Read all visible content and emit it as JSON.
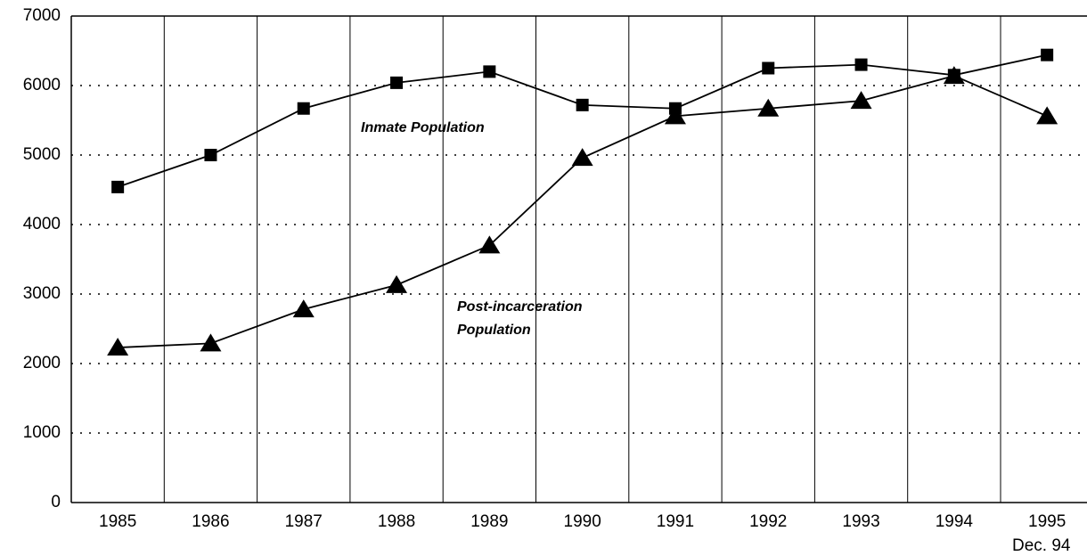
{
  "chart_data": {
    "type": "line",
    "categories": [
      "1985",
      "1986",
      "1987",
      "1988",
      "1989",
      "1990",
      "1991",
      "1992",
      "1993",
      "1994",
      "1995"
    ],
    "series": [
      {
        "name": "Inmate Population",
        "color": "#000000",
        "marker": "square",
        "values": [
          4540,
          5000,
          5670,
          6040,
          6200,
          5720,
          5670,
          6250,
          6300,
          6150,
          6440
        ]
      },
      {
        "name": "Post-incarceration Population",
        "color": "#000000",
        "marker": "triangle",
        "values": [
          2230,
          2290,
          2780,
          3130,
          3700,
          4960,
          5560,
          5670,
          5780,
          6140,
          5560
        ]
      }
    ],
    "annotations": [
      "Inmate Population",
      "Post-incarceration",
      "Population",
      "Dec. 94"
    ],
    "ylim": [
      0,
      7000
    ],
    "yticks": [
      0,
      1000,
      2000,
      3000,
      4000,
      5000,
      6000,
      7000
    ],
    "grid": true
  }
}
